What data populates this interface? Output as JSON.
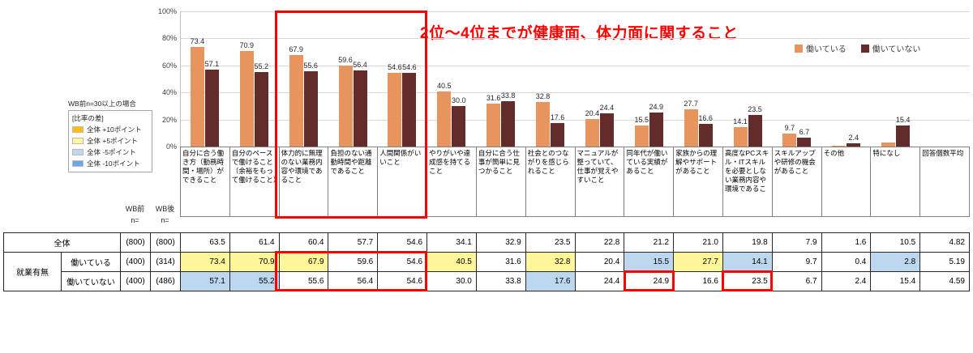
{
  "annotation": {
    "text": "2位〜4位までが健康面、体力面に関すること"
  },
  "side": {
    "note": "WB前n=30以上の場合",
    "diff_legend": {
      "title": "[比率の差]",
      "items": [
        {
          "label": "全体 +10ポイント",
          "color": "#FFC000"
        },
        {
          "label": "全体 +5ポイント",
          "color": "#FFF599"
        },
        {
          "label": "全体 -5ポイント",
          "color": "#BDD7EE"
        },
        {
          "label": "全体 -10ポイント",
          "color": "#6FA8DC"
        }
      ]
    }
  },
  "chart_data": {
    "type": "bar",
    "title": "",
    "ylabel": "",
    "ylim": [
      0,
      100
    ],
    "grid": true,
    "legend_position": "top-right",
    "y_ticks": [
      "100%",
      "80%",
      "60%",
      "40%",
      "20%",
      "0%"
    ],
    "categories": [
      "自分に合う働き方（勤務時間・場所）ができること",
      "自分のペースで働けること（余裕をもって働けること）",
      "体力的に無理のない業務内容や環境であること",
      "負担のない通勤時間や距離であること",
      "人間関係がいいこと",
      "やりがいや達成感を持てること",
      "自分に合う仕事が簡単に見つかること",
      "社会とのつながりを感じられること",
      "マニュアルが整っていて、仕事が覚えやすいこと",
      "同年代が働いている実績があること",
      "家族からの理解やサポートがあること",
      "高度なPCスキル・ITスキルを必要としない業務内容や環境であるこ",
      "スキルアップや研修の機会があること",
      "その他",
      "特になし",
      "回答個数平均"
    ],
    "series": [
      {
        "name": "働いている",
        "color": "#E8945E",
        "values": [
          73.4,
          70.9,
          67.9,
          59.6,
          54.6,
          40.5,
          31.6,
          32.8,
          20.4,
          15.5,
          27.7,
          14.1,
          9.7,
          0.4,
          2.8,
          null
        ]
      },
      {
        "name": "働いていない",
        "color": "#642B2B",
        "values": [
          57.1,
          55.2,
          55.6,
          56.4,
          54.6,
          30.0,
          33.8,
          17.6,
          24.4,
          24.9,
          16.6,
          23.5,
          6.7,
          2.4,
          15.4,
          null
        ]
      }
    ],
    "value_labels": [
      [
        "73.4",
        "70.9",
        "67.9",
        "59.6",
        "54.6",
        "40.5",
        "31.6",
        "32.8",
        "20.4",
        "15.5",
        "27.7",
        "14.1",
        "9.7",
        "",
        "",
        ""
      ],
      [
        "57.1",
        "55.2",
        "55.6",
        "56.4",
        "54.6",
        "30.0",
        "33.8",
        "17.6",
        "24.4",
        "24.9",
        "16.6",
        "23.5",
        "6.7",
        "2.4",
        "15.4",
        ""
      ]
    ]
  },
  "table": {
    "group_label": "就業有無",
    "col_headers": {
      "wb_pre": "WB前",
      "wb_post": "WB後",
      "n": "n="
    },
    "highlight_colors": {
      "plus": "#FFF599",
      "minus": "#BDD7EE"
    },
    "rows": [
      {
        "label": "全体",
        "n_pre": "(800)",
        "n_post": "(800)",
        "values": [
          "63.5",
          "61.4",
          "60.4",
          "57.7",
          "54.6",
          "34.1",
          "32.9",
          "23.5",
          "22.8",
          "21.2",
          "21.0",
          "19.8",
          "7.9",
          "1.6",
          "10.5",
          "4.82"
        ],
        "highlights": [
          "",
          "",
          "",
          "",
          "",
          "",
          "",
          "",
          "",
          "",
          "",
          "",
          "",
          "",
          "",
          ""
        ]
      },
      {
        "label": "働いている",
        "n_pre": "(400)",
        "n_post": "(314)",
        "values": [
          "73.4",
          "70.9",
          "67.9",
          "59.6",
          "54.6",
          "40.5",
          "31.6",
          "32.8",
          "20.4",
          "15.5",
          "27.7",
          "14.1",
          "9.7",
          "0.4",
          "2.8",
          "5.19"
        ],
        "highlights": [
          "plus",
          "plus",
          "plus",
          "",
          "",
          "plus",
          "",
          "plus",
          "",
          "minus",
          "plus",
          "minus",
          "",
          "",
          "minus",
          ""
        ]
      },
      {
        "label": "働いていない",
        "n_pre": "(400)",
        "n_post": "(486)",
        "values": [
          "57.1",
          "55.2",
          "55.6",
          "56.4",
          "54.6",
          "30.0",
          "33.8",
          "17.6",
          "24.4",
          "24.9",
          "16.6",
          "23.5",
          "6.7",
          "2.4",
          "15.4",
          "4.59"
        ],
        "highlights": [
          "minus",
          "minus",
          "",
          "",
          "",
          "",
          "",
          "minus",
          "",
          "",
          "",
          "",
          "",
          "",
          "",
          ""
        ]
      }
    ]
  }
}
